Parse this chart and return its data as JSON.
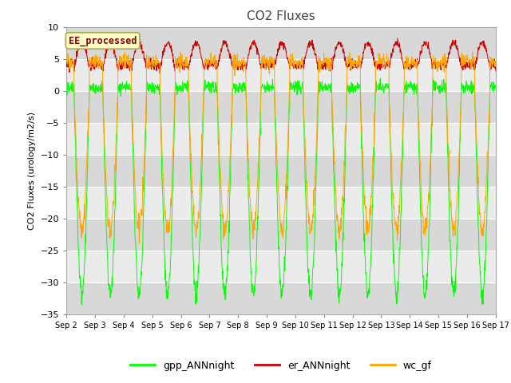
{
  "title": "CO2 Fluxes",
  "ylabel": "CO2 Fluxes (urology/m2/s)",
  "xlabel": "",
  "ylim": [
    -35,
    10
  ],
  "n_days": 15,
  "xtick_labels": [
    "Sep 2",
    "Sep 3",
    "Sep 4",
    "Sep 5",
    "Sep 6",
    "Sep 7",
    "Sep 8",
    "Sep 9",
    "Sep 10",
    "Sep 11",
    "Sep 12",
    "Sep 13",
    "Sep 14",
    "Sep 15",
    "Sep 16",
    "Sep 17"
  ],
  "yticks": [
    10,
    5,
    0,
    -5,
    -10,
    -15,
    -20,
    -25,
    -30,
    -35
  ],
  "colors": {
    "gpp": "#00FF00",
    "er": "#CC0000",
    "wc": "#FFA500"
  },
  "legend_labels": [
    "gpp_ANNnight",
    "er_ANNnight",
    "wc_gf"
  ],
  "inset_label": "EE_processed",
  "inset_bg": "#FFFFCC",
  "inset_border": "#AAAA44",
  "inset_text_color": "#880000",
  "fig_bg": "#FFFFFF",
  "plot_bg": "#E8E8E8",
  "band_light": "#EBEBEB",
  "band_dark": "#D8D8D8",
  "grid_color": "#FFFFFF",
  "title_fontsize": 11,
  "axis_fontsize": 8,
  "legend_fontsize": 9
}
